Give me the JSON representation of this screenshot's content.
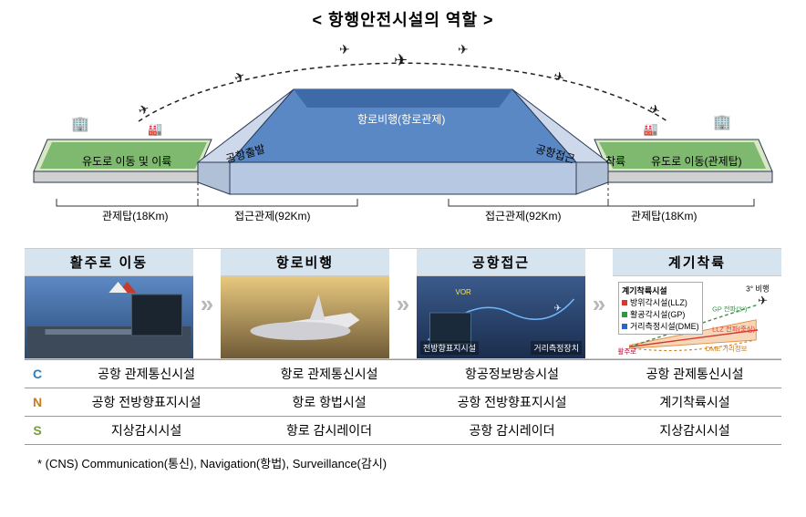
{
  "title": "< 항행안전시설의 역할 >",
  "diagram": {
    "segments": {
      "taxi_left": "유도로 이동 및 이륙",
      "departure": "공항출발",
      "enroute": "항로비행(항로관제)",
      "approach": "공항접근",
      "landing": "착륙",
      "taxi_right": "유도로 이동(관제탑)"
    },
    "ranges": {
      "tower_left": "관제탑(18Km)",
      "approach_left": "접근관제(92Km)",
      "approach_right": "접근관제(92Km)",
      "tower_right": "관제탑(18Km)"
    },
    "colors": {
      "apron": "#7fb96f",
      "apron_edge": "#d9e7c5",
      "slab_top": "#5a88c4",
      "slab_top_dark": "#3e6aa8",
      "slab_side": "#b7c9e2",
      "slab_shadow": "#8aa3c7",
      "outline": "#2a3a55",
      "path": "#222222"
    }
  },
  "phases": [
    {
      "title": "활주로 이동",
      "thumb_bg": "linear-gradient(#5d89c3,#274a7a)",
      "caption": ""
    },
    {
      "title": "항로비행",
      "thumb_bg": "linear-gradient(#e9c97f,#6e5a36)",
      "caption": ""
    },
    {
      "title": "공항접근",
      "thumb_bg": "linear-gradient(#3b5b8c,#1a2d4d)",
      "caption_left": "전방향표지시설",
      "caption": "거리측정장치"
    },
    {
      "title": "계기착륙",
      "thumb_bg": "#ffffff"
    }
  ],
  "ils": {
    "box_title": "계기착륙시설",
    "entries": [
      {
        "label": "방위각시설(LLZ)",
        "color": "#d43a2f"
      },
      {
        "label": "활공각시설(GP)",
        "color": "#2e9a3f"
      },
      {
        "label": "거리측정시설(DME)",
        "color": "#2e63c7"
      }
    ],
    "labels": {
      "glide": "3° 비행",
      "gp": "GP 전파(3°)",
      "llz": "LLZ 전파(중심)",
      "dme": "DME 거리정보",
      "rwy": "활주로"
    },
    "colors": {
      "gp": "#2e9a3f",
      "llz": "#d43a2f",
      "dme": "#c97b1c",
      "cone": "#e88c3a"
    }
  },
  "cns": {
    "rows": [
      {
        "key": "C",
        "cells": [
          "공항 관제통신시설",
          "항로 관제통신시설",
          "항공정보방송시설",
          "공항 관제통신시설"
        ]
      },
      {
        "key": "N",
        "cells": [
          "공항 전방향표지시설",
          "항로 항법시설",
          "공항 전방향표지시설",
          "계기착륙시설"
        ]
      },
      {
        "key": "S",
        "cells": [
          "지상감시시설",
          "항로 감시레이더",
          "공항 감시레이더",
          "지상감시시설"
        ]
      }
    ]
  },
  "footnote": "* (CNS) Communication(통신), Navigation(항법), Surveillance(감시)"
}
